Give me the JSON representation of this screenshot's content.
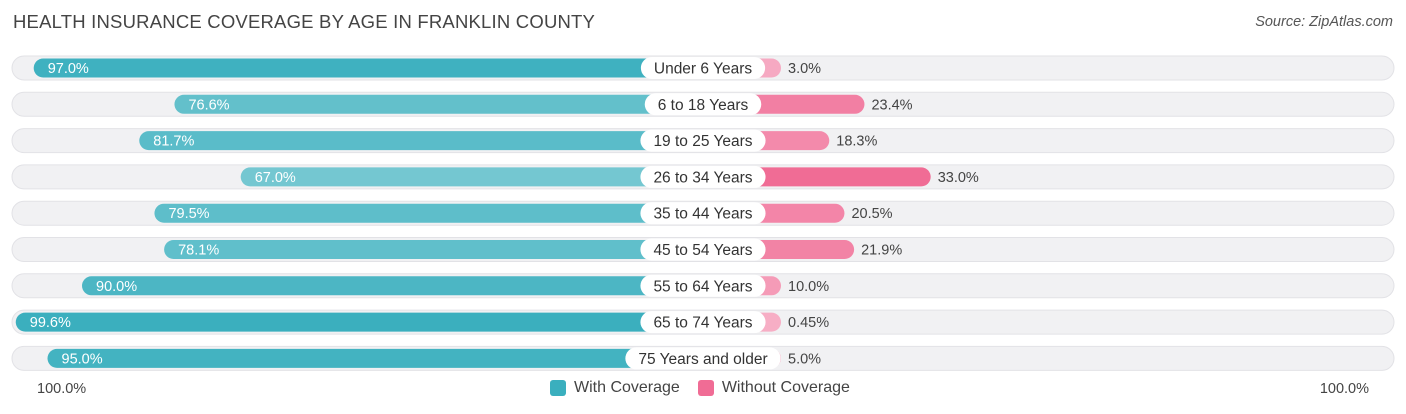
{
  "header": {
    "title": "HEALTH INSURANCE COVERAGE BY AGE IN FRANKLIN COUNTY",
    "source": "Source: ZipAtlas.com"
  },
  "colors": {
    "with_coverage": "#3AAFBE",
    "with_coverage_light": "#80CCD5",
    "without_coverage": "#F06C95",
    "without_coverage_light": "#F7AFC6",
    "row_bg": "#F1F1F3",
    "row_border": "#E2E2E6"
  },
  "legend": {
    "with_label": "With Coverage",
    "without_label": "Without Coverage"
  },
  "axis": {
    "left_label": "100.0%",
    "right_label": "100.0%"
  },
  "chart_data": {
    "type": "bar",
    "orientation": "horizontal-diverging",
    "title": "HEALTH INSURANCE COVERAGE BY AGE IN FRANKLIN COUNTY",
    "categories": [
      "Under 6 Years",
      "6 to 18 Years",
      "19 to 25 Years",
      "26 to 34 Years",
      "35 to 44 Years",
      "45 to 54 Years",
      "55 to 64 Years",
      "65 to 74 Years",
      "75 Years and older"
    ],
    "series": [
      {
        "name": "With Coverage",
        "values": [
          97.0,
          76.6,
          81.7,
          67.0,
          79.5,
          78.1,
          90.0,
          99.6,
          95.0
        ],
        "labels": [
          "97.0%",
          "76.6%",
          "81.7%",
          "67.0%",
          "79.5%",
          "78.1%",
          "90.0%",
          "99.6%",
          "95.0%"
        ]
      },
      {
        "name": "Without Coverage",
        "values": [
          3.0,
          23.4,
          18.3,
          33.0,
          20.5,
          21.9,
          10.0,
          0.45,
          5.0
        ],
        "labels": [
          "3.0%",
          "23.4%",
          "18.3%",
          "33.0%",
          "20.5%",
          "21.9%",
          "10.0%",
          "0.45%",
          "5.0%"
        ]
      }
    ],
    "xlim": [
      0,
      100
    ],
    "legend_position": "bottom-center"
  }
}
